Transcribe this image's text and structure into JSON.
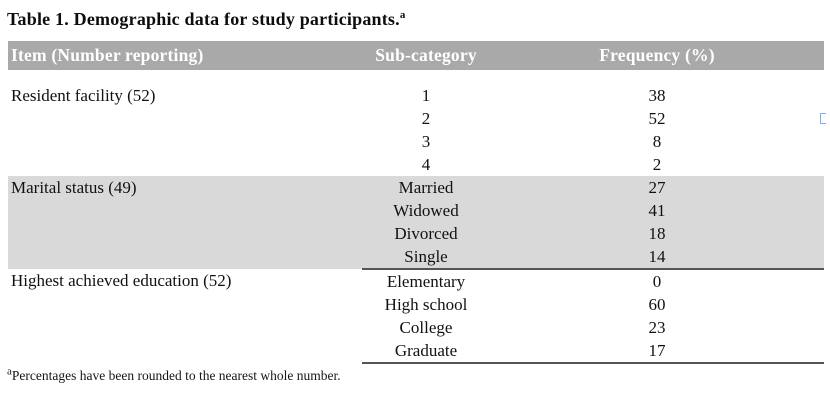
{
  "title": {
    "text": "Table 1. Demographic data for study participants.",
    "superscript": "a"
  },
  "table": {
    "columns": [
      "Item (Number reporting)",
      "Sub-category",
      "Frequency (%)"
    ],
    "sections": [
      {
        "item": "Resident facility (52)",
        "shaded": false,
        "rows": [
          [
            "1",
            "38"
          ],
          [
            "2",
            "52"
          ],
          [
            "3",
            "8"
          ],
          [
            "4",
            "2"
          ]
        ]
      },
      {
        "item": "Marital status (49)",
        "shaded": true,
        "rows": [
          [
            "Married",
            "27"
          ],
          [
            "Widowed",
            "41"
          ],
          [
            "Divorced",
            "18"
          ],
          [
            "Single",
            "14"
          ]
        ]
      },
      {
        "item": "Highest achieved education (52)",
        "shaded": false,
        "rows": [
          [
            "Elementary",
            "0"
          ],
          [
            "High school",
            "60"
          ],
          [
            "College",
            "23"
          ],
          [
            "Graduate",
            "17"
          ]
        ]
      }
    ]
  },
  "footnote": {
    "superscript": "a",
    "text": "Percentages have been rounded to the nearest whole number."
  },
  "colors": {
    "header_bg": "#a9a9a9",
    "header_text": "#ffffff",
    "shaded_band": "#d9d9d9",
    "rule": "#555555",
    "bracket_marker": "#86abec"
  }
}
